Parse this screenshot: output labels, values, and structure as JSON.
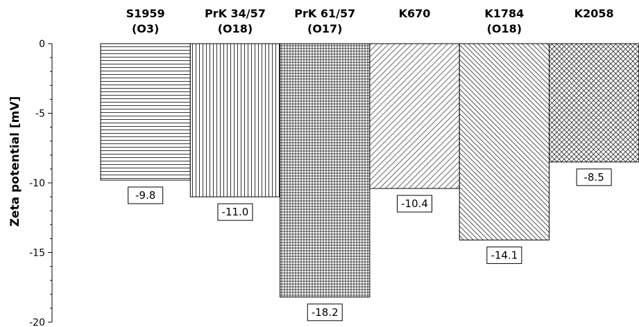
{
  "chart_data": {
    "type": "bar",
    "categories": [
      [
        "S1959",
        "(O3)"
      ],
      [
        "PrK 34/57",
        "(O18)"
      ],
      [
        "PrK 61/57",
        "(O17)"
      ],
      [
        "K670"
      ],
      [
        "K1784",
        "(O18)"
      ],
      [
        "K2058"
      ]
    ],
    "values": [
      -9.8,
      -11.0,
      -18.2,
      -10.4,
      -14.1,
      -8.5
    ],
    "value_labels": [
      "-9.8",
      "-11.0",
      "-18.2",
      "-10.4",
      "-14.1",
      "-8.5"
    ],
    "patterns": [
      "horizontal-lines",
      "vertical-lines",
      "grid",
      "diagonal-lines",
      "diagonal-lines-dense",
      "crosshatch"
    ],
    "xlabel": "",
    "ylabel": "Zeta potential [mV]",
    "ylim": [
      -20,
      0
    ],
    "yticks": [
      0,
      -5,
      -10,
      -15,
      -20
    ],
    "ytick_labels": [
      "0",
      "-5",
      "-10",
      "-15",
      "-20"
    ],
    "category_axis_position": "top",
    "grid": false,
    "legend": "none",
    "colors": {
      "bar_fill": "#ffffff",
      "bar_stroke": "#000000",
      "pattern": "#000000"
    }
  }
}
